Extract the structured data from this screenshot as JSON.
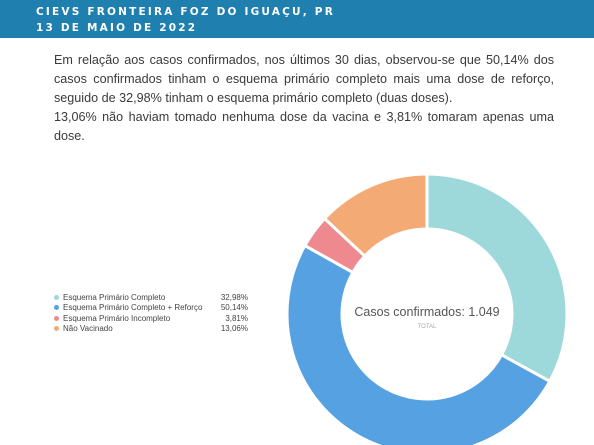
{
  "header": {
    "line1": "CIEVS FRONTEIRA FOZ DO IGUAÇU, PR",
    "line2": "13 DE MAIO DE 2022"
  },
  "paragraph": {
    "p1": "Em relação aos casos confirmados, nos últimos 30 dias, observou-se que 50,14% dos casos confirmados tinham o esquema primário completo mais uma dose de reforço, seguido de 32,98% tinham o esquema primário completo (duas doses).",
    "p2": "13,06% não haviam tomado nenhuma dose da vacina e 3,81% tomaram apenas uma dose."
  },
  "chart_data": {
    "type": "pie",
    "center_title": "Casos confirmados: 1.049",
    "center_subtitle": "TOTAL",
    "legend_position": "left",
    "slices": [
      {
        "label": "Esquema Primário Completo",
        "value": 32.98,
        "value_label": "32,98%",
        "color": "#9dd9da"
      },
      {
        "label": "Esquema Primário Completo + Reforço",
        "value": 50.14,
        "value_label": "50,14%",
        "color": "#56a1e2"
      },
      {
        "label": "Esquema Primário Incompleto",
        "value": 3.81,
        "value_label": "3,81%",
        "color": "#ee8a8f"
      },
      {
        "label": "Não Vacinado",
        "value": 13.06,
        "value_label": "13,06%",
        "color": "#f4aa74"
      }
    ]
  }
}
